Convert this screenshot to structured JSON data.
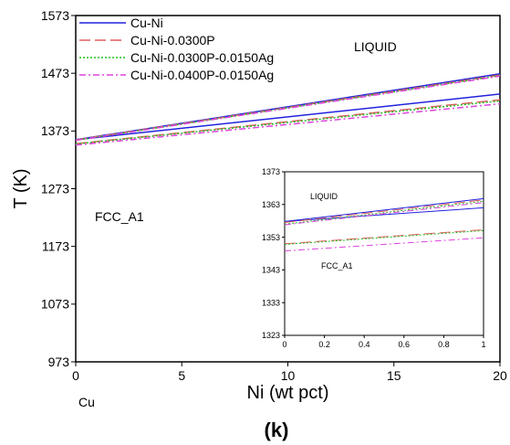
{
  "chart_data": [
    {
      "type": "line",
      "xlabel": "Ni (wt pct)",
      "ylabel": "T (K)",
      "xlim": [
        0,
        20
      ],
      "ylim": [
        973,
        1573
      ],
      "xticks": [
        "0",
        "5",
        "10",
        "15",
        "20"
      ],
      "yticks": [
        "973",
        "1073",
        "1173",
        "1273",
        "1373",
        "1473",
        "1573"
      ],
      "legend_position": "top-left",
      "region_labels": {
        "liquid": "LIQUID",
        "solid": "FCC_A1"
      },
      "x_annotation": "Cu",
      "panel_label": "(k)",
      "series": [
        {
          "name": "Cu-Ni",
          "color": "#2222dd",
          "dash": "solid",
          "liquidus": {
            "x": [
              0,
              20
            ],
            "y": [
              1357.8,
              1472
            ]
          },
          "solidus": {
            "x": [
              0,
              20
            ],
            "y": [
              1357.8,
              1437
            ]
          }
        },
        {
          "name": "Cu-Ni-0.0300P",
          "color": "#e06060",
          "dash": "long-dash",
          "liquidus": {
            "x": [
              0,
              20
            ],
            "y": [
              1357.5,
              1470
            ]
          },
          "solidus": {
            "x": [
              0,
              20
            ],
            "y": [
              1351,
              1427
            ]
          }
        },
        {
          "name": "Cu-Ni-0.0300P-0.0150Ag",
          "color": "#22bb22",
          "dash": "dot",
          "liquidus": {
            "x": [
              0,
              20
            ],
            "y": [
              1357,
              1469
            ]
          },
          "solidus": {
            "x": [
              0,
              20
            ],
            "y": [
              1350.5,
              1425
            ]
          }
        },
        {
          "name": "Cu-Ni-0.0400P-0.0150Ag",
          "color": "#dd44dd",
          "dash": "dash-dot",
          "liquidus": {
            "x": [
              0,
              20
            ],
            "y": [
              1356.8,
              1468
            ]
          },
          "solidus": {
            "x": [
              0,
              20
            ],
            "y": [
              1348.5,
              1420
            ]
          }
        }
      ]
    },
    {
      "type": "line",
      "xlim": [
        0,
        1
      ],
      "ylim": [
        1323,
        1373
      ],
      "xticks": [
        "0",
        "0.2",
        "0.4",
        "0.6",
        "0.8",
        "1"
      ],
      "yticks": [
        "1323",
        "1333",
        "1343",
        "1353",
        "1363",
        "1373"
      ],
      "region_labels": {
        "liquid": "LIQUID",
        "solid": "FCC_A1"
      },
      "series": [
        {
          "name": "Cu-Ni",
          "color": "#2222dd",
          "dash": "solid",
          "liquidus": {
            "x": [
              0,
              1
            ],
            "y": [
              1357.8,
              1364.8
            ]
          },
          "solidus": {
            "x": [
              0,
              1
            ],
            "y": [
              1357.8,
              1362
            ]
          }
        },
        {
          "name": "Cu-Ni-0.0300P",
          "color": "#e06060",
          "dash": "long-dash",
          "liquidus": {
            "x": [
              0,
              1
            ],
            "y": [
              1357.5,
              1364.4
            ]
          },
          "solidus": {
            "x": [
              0,
              1
            ],
            "y": [
              1351,
              1355.3
            ]
          }
        },
        {
          "name": "Cu-Ni-0.0300P-0.0150Ag",
          "color": "#22bb22",
          "dash": "dot",
          "liquidus": {
            "x": [
              0,
              1
            ],
            "y": [
              1357,
              1364
            ]
          },
          "solidus": {
            "x": [
              0,
              1
            ],
            "y": [
              1350.8,
              1355
            ]
          }
        },
        {
          "name": "Cu-Ni-0.0400P-0.0150Ag",
          "color": "#dd44dd",
          "dash": "dash-dot",
          "liquidus": {
            "x": [
              0,
              1
            ],
            "y": [
              1356.8,
              1363.6
            ]
          },
          "solidus": {
            "x": [
              0,
              1
            ],
            "y": [
              1348.8,
              1352.8
            ]
          }
        }
      ]
    }
  ]
}
